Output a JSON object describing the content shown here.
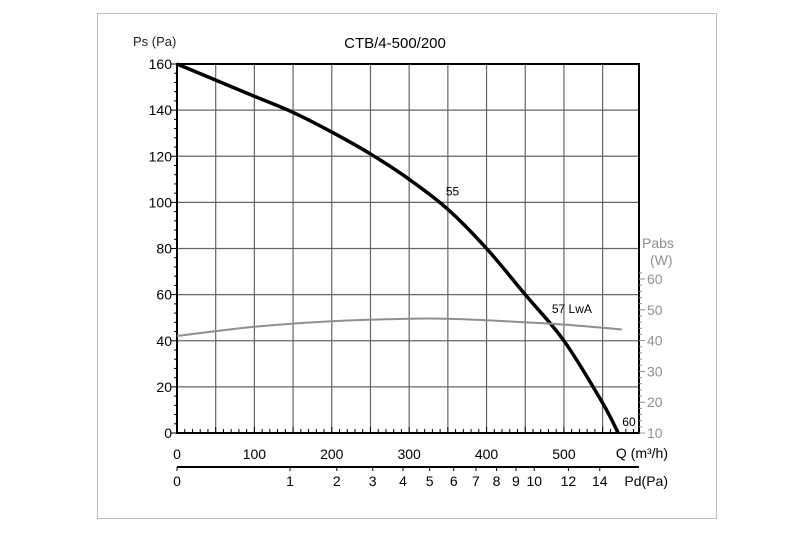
{
  "chart_data": {
    "type": "line",
    "title": "CTB/4-500/200",
    "xlabel": "Q (m³/h)",
    "ylabel": "Ps (Pa)",
    "y2label_line1": "Pabs",
    "y2label_line2": "(W)",
    "x2label": "Pd(Pa)",
    "xlim": [
      0,
      597
    ],
    "ylim": [
      0,
      160
    ],
    "y2lim": [
      10,
      62
    ],
    "grid": true,
    "x_ticks": [
      0,
      100,
      200,
      300,
      400,
      500
    ],
    "y_ticks": [
      0,
      20,
      40,
      60,
      80,
      100,
      120,
      140,
      160
    ],
    "y2_ticks": [
      10,
      20,
      30,
      40,
      50,
      60
    ],
    "pd_ticks": [
      0,
      1,
      2,
      3,
      4,
      5,
      6,
      7,
      8,
      9,
      10,
      12,
      14
    ],
    "series": [
      {
        "axis": "left",
        "color": "#000000",
        "x": [
          0,
          50,
          100,
          150,
          200,
          250,
          300,
          350,
          400,
          450,
          500,
          550,
          570
        ],
        "y": [
          160,
          153,
          146,
          139,
          130.5,
          121,
          110,
          97,
          80,
          60,
          40,
          13,
          0
        ]
      },
      {
        "axis": "right",
        "color": "#8f8f8f",
        "x": [
          0,
          100,
          200,
          300,
          350,
          400,
          500,
          575
        ],
        "y": [
          41.5,
          44.5,
          46.3,
          47.1,
          47.1,
          46.6,
          45.2,
          43.6
        ]
      }
    ],
    "annotations": [
      {
        "text": "55",
        "x": 350,
        "y": 103
      },
      {
        "text": "57 LwA",
        "x": 487,
        "y": 52
      },
      {
        "text": "60",
        "x": 578,
        "y": 3
      }
    ],
    "colors": {
      "axis": "#000000",
      "grid": "#666666",
      "right_axis": "#8f8f8f",
      "frame": "#bdbdbd"
    }
  }
}
